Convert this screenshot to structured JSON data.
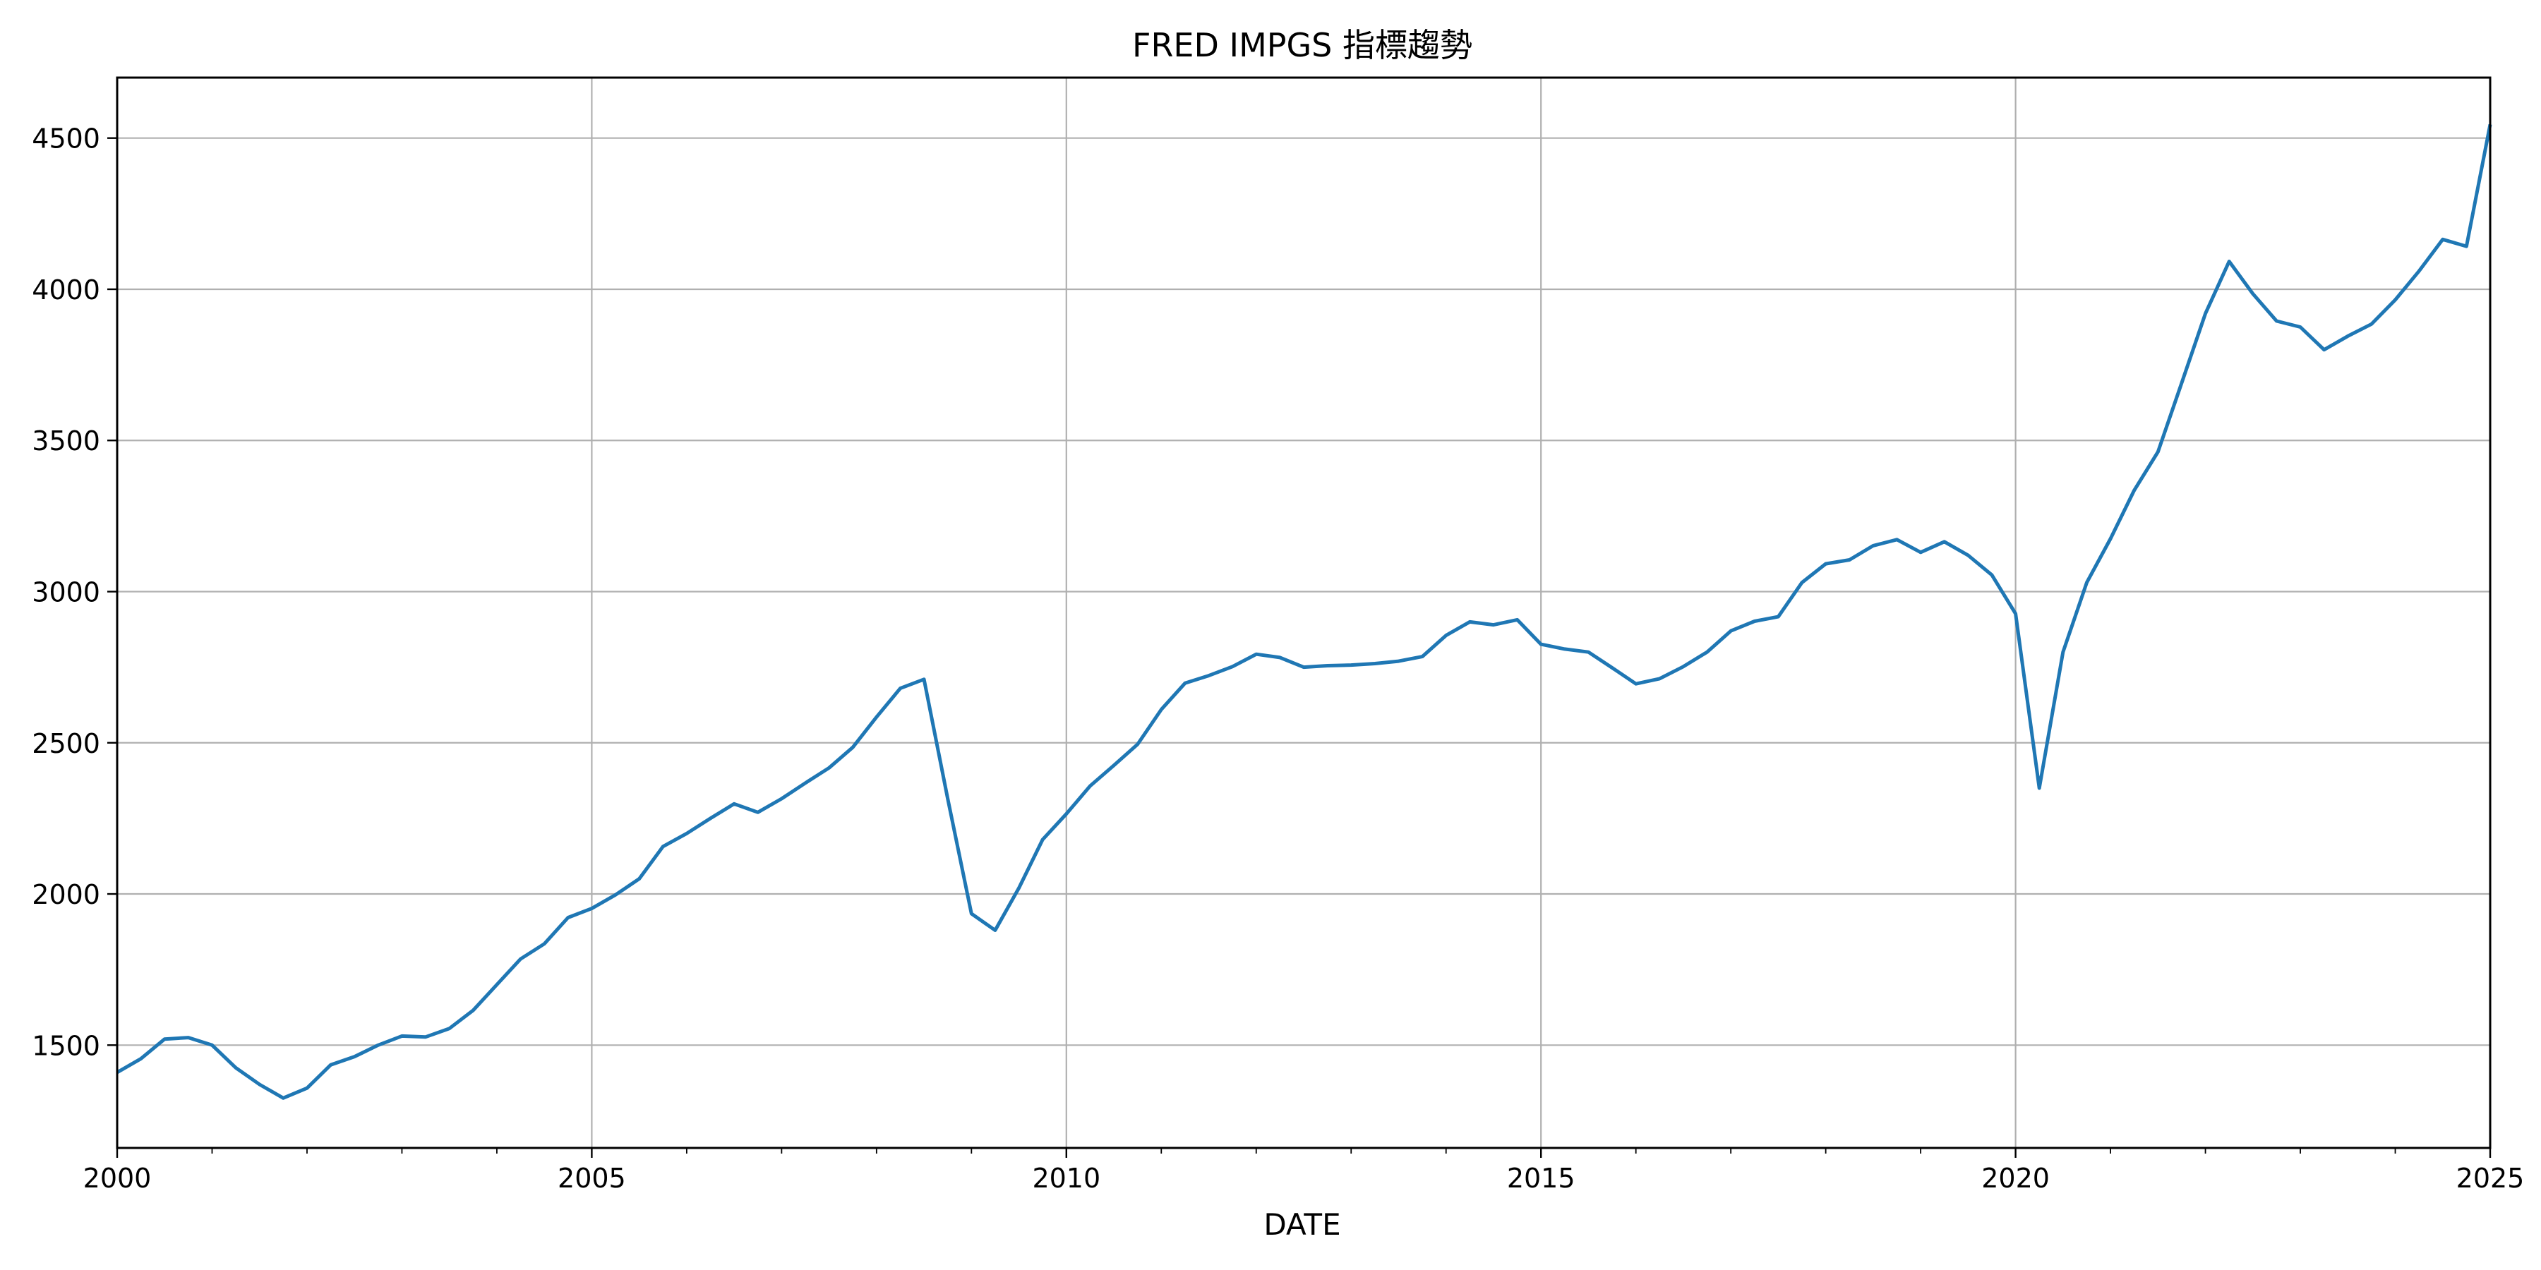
{
  "chart_data": {
    "type": "line",
    "title": "FRED IMPGS 指標趨勢",
    "xlabel": "DATE",
    "ylabel": "",
    "xlim": [
      2000,
      2025
    ],
    "ylim": [
      1160,
      4700
    ],
    "grid": true,
    "legend": "none",
    "x_ticks": [
      2000,
      2005,
      2010,
      2015,
      2020,
      2025
    ],
    "x_tick_labels": [
      "2000",
      "2005",
      "2010",
      "2015",
      "2020",
      "2025"
    ],
    "y_ticks": [
      1500,
      2000,
      2500,
      3000,
      3500,
      4000,
      4500
    ],
    "y_tick_labels": [
      "1500",
      "2000",
      "2500",
      "3000",
      "3500",
      "4000",
      "4500"
    ],
    "series": [
      {
        "color": "#1f77b4",
        "x": [
          2000.0,
          2000.25,
          2000.5,
          2000.75,
          2001.0,
          2001.25,
          2001.5,
          2001.75,
          2002.0,
          2002.25,
          2002.5,
          2002.75,
          2003.0,
          2003.25,
          2003.5,
          2003.75,
          2004.0,
          2004.25,
          2004.5,
          2004.75,
          2005.0,
          2005.25,
          2005.5,
          2005.75,
          2006.0,
          2006.25,
          2006.5,
          2006.75,
          2007.0,
          2007.25,
          2007.5,
          2007.75,
          2008.0,
          2008.25,
          2008.5,
          2008.75,
          2009.0,
          2009.25,
          2009.5,
          2009.75,
          2010.0,
          2010.25,
          2010.5,
          2010.75,
          2011.0,
          2011.25,
          2011.5,
          2011.75,
          2012.0,
          2012.25,
          2012.5,
          2012.75,
          2013.0,
          2013.25,
          2013.5,
          2013.75,
          2014.0,
          2014.25,
          2014.5,
          2014.75,
          2015.0,
          2015.25,
          2015.5,
          2015.75,
          2016.0,
          2016.25,
          2016.5,
          2016.75,
          2017.0,
          2017.25,
          2017.5,
          2017.75,
          2018.0,
          2018.25,
          2018.5,
          2018.75,
          2019.0,
          2019.25,
          2019.5,
          2019.75,
          2020.0,
          2020.25,
          2020.5,
          2020.75,
          2021.0,
          2021.25,
          2021.5,
          2021.75,
          2022.0,
          2022.25,
          2022.5,
          2022.75,
          2023.0,
          2023.25,
          2023.5,
          2023.75,
          2024.0,
          2024.25,
          2024.5,
          2024.75,
          2025.0
        ],
        "values": [
          1410,
          1455,
          1520,
          1525,
          1500,
          1425,
          1370,
          1325,
          1358,
          1435,
          1462,
          1500,
          1530,
          1527,
          1555,
          1615,
          1700,
          1785,
          1835,
          1922,
          1952,
          1997,
          2050,
          2157,
          2200,
          2250,
          2298,
          2270,
          2315,
          2367,
          2417,
          2485,
          2585,
          2680,
          2710,
          2315,
          1935,
          1880,
          2020,
          2180,
          2265,
          2357,
          2425,
          2495,
          2610,
          2697,
          2722,
          2752,
          2793,
          2782,
          2750,
          2755,
          2757,
          2762,
          2770,
          2785,
          2855,
          2900,
          2890,
          2907,
          2826,
          2810,
          2800,
          2748,
          2695,
          2712,
          2752,
          2800,
          2870,
          2902,
          2917,
          3030,
          3092,
          3105,
          3152,
          3172,
          3130,
          3165,
          3120,
          3055,
          2927,
          2350,
          2800,
          3030,
          3175,
          3335,
          3462,
          3690,
          3920,
          4092,
          3985,
          3895,
          3875,
          3800,
          3845,
          3885,
          3965,
          4060,
          4165,
          4142,
          4545
        ]
      }
    ]
  }
}
